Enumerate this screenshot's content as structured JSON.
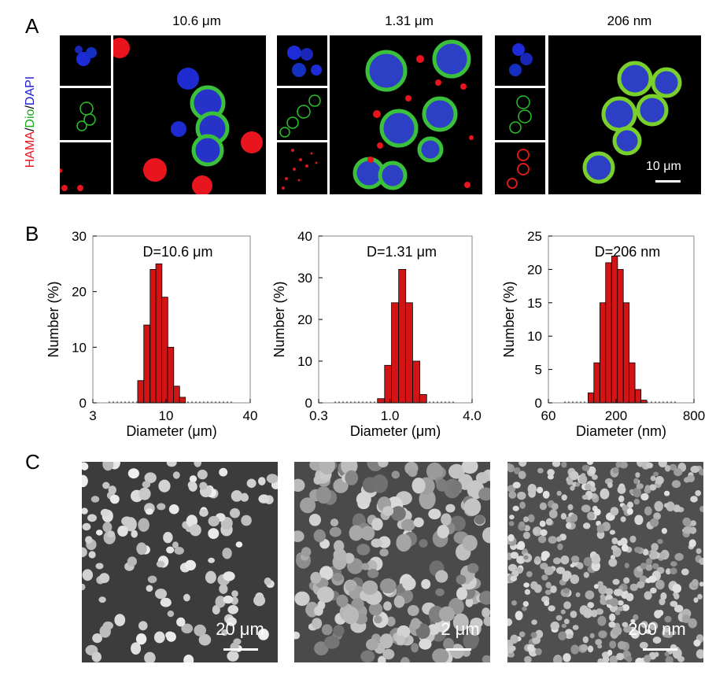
{
  "panelA": {
    "letter": "A",
    "side_label": {
      "p1": "HAMA",
      "s1": "/",
      "p2": "Dio",
      "s2": "/",
      "p3": "DAPI"
    },
    "titles": [
      "10.6 μm",
      "1.31 μm",
      "206 nm"
    ],
    "scalebar": "10 μm"
  },
  "panelB": {
    "letter": "B"
  },
  "panelC": {
    "letter": "C",
    "scalebars": [
      "20 μm",
      "2 μm",
      "200 nm"
    ]
  },
  "colors": {
    "bar": "#d41414",
    "red": "#e8141e",
    "green": "#18a818",
    "blue": "#1d1dd1"
  },
  "chart_data": [
    {
      "type": "bar",
      "annotation": "D=10.6 μm",
      "xlabel": "Diameter (μm)",
      "ylabel": "Number (%)",
      "xscale": "log",
      "xticks": [
        "3",
        "10",
        "40"
      ],
      "xtick_values": [
        3,
        10,
        40
      ],
      "xlim": [
        3,
        40
      ],
      "ylim": [
        0,
        30
      ],
      "yticks": [
        0,
        10,
        20,
        30
      ],
      "x": [
        6.6,
        7.3,
        8.1,
        8.9,
        9.8,
        10.8,
        11.9,
        13.1,
        14.5
      ],
      "values": [
        4,
        14,
        24,
        25,
        19,
        10,
        3,
        1,
        0
      ]
    },
    {
      "type": "bar",
      "annotation": "D=1.31 μm",
      "xlabel": "Diameter (μm)",
      "ylabel": "Number (%)",
      "xscale": "log",
      "xticks": [
        "0.3",
        "1.0",
        "4.0"
      ],
      "xtick_values": [
        0.3,
        1.0,
        4.0
      ],
      "xlim": [
        0.3,
        4.0
      ],
      "ylim": [
        0,
        40
      ],
      "yticks": [
        0,
        10,
        20,
        30,
        40
      ],
      "x": [
        0.86,
        0.97,
        1.09,
        1.23,
        1.38,
        1.56,
        1.75
      ],
      "values": [
        1,
        9,
        24,
        32,
        24,
        10,
        2
      ]
    },
    {
      "type": "bar",
      "annotation": "D=206 nm",
      "xlabel": "Diameter (nm)",
      "ylabel": "Number (%)",
      "xscale": "log",
      "xticks": [
        "60",
        "200",
        "800"
      ],
      "xtick_values": [
        60,
        200,
        800
      ],
      "xlim": [
        60,
        800
      ],
      "ylim": [
        0,
        25
      ],
      "yticks": [
        0,
        5,
        10,
        15,
        20,
        25
      ],
      "x": [
        128,
        142,
        158,
        175,
        195,
        216,
        240,
        266,
        296,
        328
      ],
      "values": [
        1.5,
        6,
        15,
        21,
        22,
        20,
        15,
        6,
        2,
        0.4
      ]
    }
  ]
}
